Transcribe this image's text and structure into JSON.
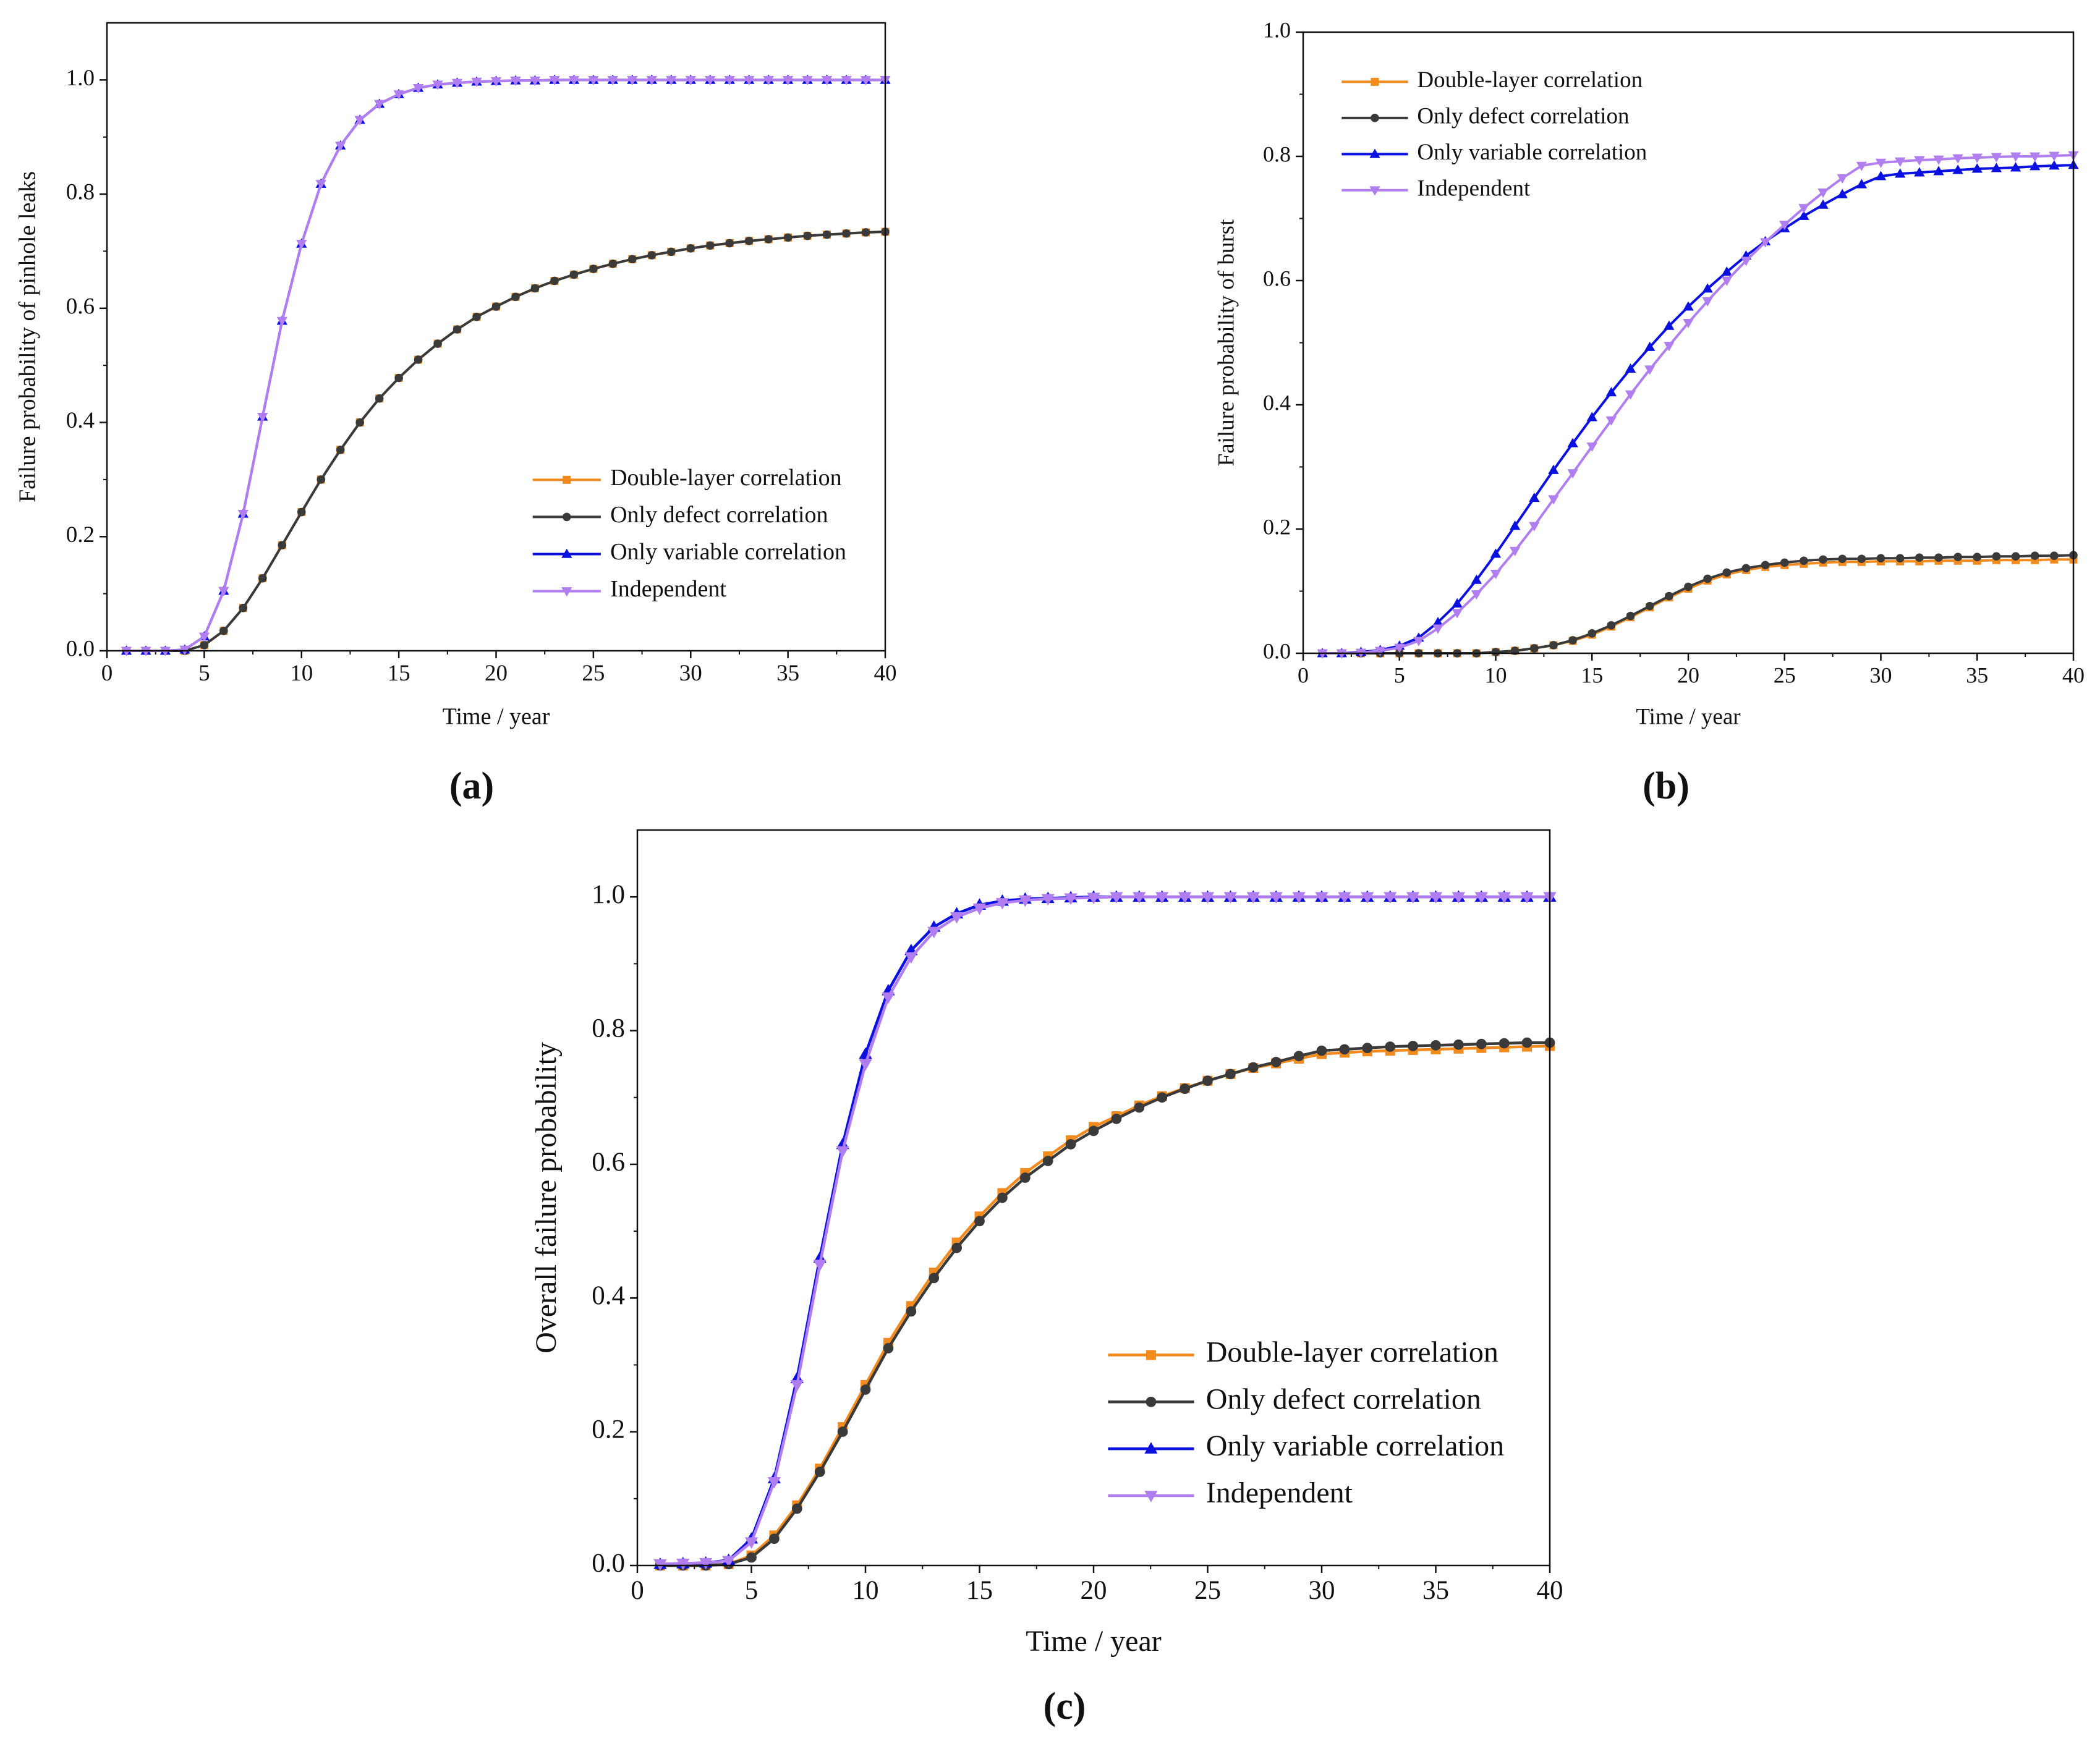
{
  "chart_data": [
    {
      "type": "line",
      "panel_label": "(a)",
      "xlabel": "Time / year",
      "ylabel": "Failure probability of pinhole leaks",
      "xlim": [
        0,
        40
      ],
      "ylim": [
        0,
        1.1
      ],
      "xticks": [
        0,
        5,
        10,
        15,
        20,
        25,
        30,
        35,
        40
      ],
      "yticks": [
        {
          "value": 0,
          "label": "0.0"
        },
        0.2,
        0.4,
        0.6,
        0.8,
        {
          "value": 1,
          "label": "1.0"
        }
      ],
      "legend": "lower right",
      "x": [
        1,
        2,
        3,
        4,
        5,
        6,
        7,
        8,
        9,
        10,
        11,
        12,
        13,
        14,
        15,
        16,
        17,
        18,
        19,
        20,
        21,
        22,
        23,
        24,
        25,
        26,
        27,
        28,
        29,
        30,
        31,
        32,
        33,
        34,
        35,
        36,
        37,
        38,
        39,
        40
      ],
      "series": [
        {
          "name": "Double-layer correlation",
          "color": "#f28a1e",
          "marker": "square",
          "values": [
            0,
            0,
            0,
            0,
            0.01,
            0.035,
            0.075,
            0.127,
            0.185,
            0.243,
            0.3,
            0.352,
            0.4,
            0.442,
            0.478,
            0.51,
            0.538,
            0.563,
            0.585,
            0.603,
            0.62,
            0.635,
            0.648,
            0.659,
            0.669,
            0.678,
            0.686,
            0.693,
            0.699,
            0.705,
            0.71,
            0.714,
            0.718,
            0.721,
            0.724,
            0.727,
            0.729,
            0.731,
            0.733,
            0.734
          ]
        },
        {
          "name": "Only defect correlation",
          "color": "#3a3a3a",
          "marker": "circle",
          "values": [
            0,
            0,
            0,
            0,
            0.01,
            0.035,
            0.075,
            0.127,
            0.185,
            0.243,
            0.3,
            0.352,
            0.4,
            0.442,
            0.478,
            0.51,
            0.538,
            0.563,
            0.585,
            0.603,
            0.62,
            0.635,
            0.648,
            0.659,
            0.669,
            0.678,
            0.686,
            0.693,
            0.699,
            0.705,
            0.71,
            0.714,
            0.718,
            0.721,
            0.724,
            0.727,
            0.729,
            0.731,
            0.733,
            0.734
          ]
        },
        {
          "name": "Only variable correlation",
          "color": "#0a10e0",
          "marker": "triangle-up",
          "values": [
            0,
            0,
            0,
            0.002,
            0.025,
            0.105,
            0.24,
            0.41,
            0.578,
            0.713,
            0.818,
            0.885,
            0.93,
            0.958,
            0.975,
            0.986,
            0.992,
            0.995,
            0.997,
            0.998,
            0.999,
            0.999,
            1,
            1,
            1,
            1,
            1,
            1,
            1,
            1,
            1,
            1,
            1,
            1,
            1,
            1,
            1,
            1,
            1,
            1
          ]
        },
        {
          "name": "Independent",
          "color": "#b07ef0",
          "marker": "triangle-down",
          "values": [
            0,
            0,
            0,
            0.002,
            0.025,
            0.105,
            0.24,
            0.41,
            0.578,
            0.713,
            0.818,
            0.885,
            0.93,
            0.958,
            0.975,
            0.986,
            0.992,
            0.995,
            0.997,
            0.998,
            0.999,
            0.999,
            1,
            1,
            1,
            1,
            1,
            1,
            1,
            1,
            1,
            1,
            1,
            1,
            1,
            1,
            1,
            1,
            1,
            1
          ]
        }
      ]
    },
    {
      "type": "line",
      "panel_label": "(b)",
      "xlabel": "Time / year",
      "ylabel": "Failure probability of burst",
      "xlim": [
        0,
        40
      ],
      "ylim": [
        0,
        1
      ],
      "xticks": [
        0,
        5,
        10,
        15,
        20,
        25,
        30,
        35,
        40
      ],
      "yticks": [
        {
          "value": 0,
          "label": "0.0"
        },
        0.2,
        0.4,
        0.6,
        0.8,
        {
          "value": 1,
          "label": "1.0"
        }
      ],
      "legend": "upper left",
      "x": [
        1,
        2,
        3,
        4,
        5,
        6,
        7,
        8,
        9,
        10,
        11,
        12,
        13,
        14,
        15,
        16,
        17,
        18,
        19,
        20,
        21,
        22,
        23,
        24,
        25,
        26,
        27,
        28,
        29,
        30,
        31,
        32,
        33,
        34,
        35,
        36,
        37,
        38,
        39,
        40
      ],
      "series": [
        {
          "name": "Double-layer correlation",
          "color": "#f28a1e",
          "marker": "square",
          "values": [
            0,
            0,
            0,
            0,
            0,
            0,
            0,
            0,
            0,
            0.002,
            0.004,
            0.008,
            0.013,
            0.02,
            0.03,
            0.043,
            0.058,
            0.074,
            0.09,
            0.104,
            0.117,
            0.127,
            0.134,
            0.139,
            0.142,
            0.144,
            0.146,
            0.147,
            0.147,
            0.148,
            0.148,
            0.148,
            0.149,
            0.149,
            0.149,
            0.15,
            0.15,
            0.15,
            0.151,
            0.151
          ]
        },
        {
          "name": "Only defect correlation",
          "color": "#3a3a3a",
          "marker": "circle",
          "values": [
            0,
            0,
            0,
            0,
            0,
            0,
            0,
            0,
            0,
            0.002,
            0.004,
            0.008,
            0.013,
            0.021,
            0.032,
            0.045,
            0.06,
            0.076,
            0.092,
            0.107,
            0.12,
            0.13,
            0.137,
            0.142,
            0.146,
            0.149,
            0.151,
            0.152,
            0.152,
            0.153,
            0.153,
            0.154,
            0.154,
            0.155,
            0.155,
            0.156,
            0.156,
            0.157,
            0.157,
            0.158
          ]
        },
        {
          "name": "Only variable correlation",
          "color": "#0a10e0",
          "marker": "triangle-up",
          "values": [
            0,
            0,
            0.002,
            0.005,
            0.012,
            0.025,
            0.05,
            0.08,
            0.118,
            0.16,
            0.205,
            0.25,
            0.295,
            0.338,
            0.38,
            0.42,
            0.458,
            0.493,
            0.527,
            0.558,
            0.587,
            0.614,
            0.64,
            0.663,
            0.684,
            0.704,
            0.722,
            0.739,
            0.755,
            0.768,
            0.772,
            0.774,
            0.776,
            0.778,
            0.78,
            0.781,
            0.782,
            0.784,
            0.785,
            0.786
          ]
        },
        {
          "name": "Independent",
          "color": "#b07ef0",
          "marker": "triangle-down",
          "values": [
            0,
            0,
            0.001,
            0.004,
            0.009,
            0.02,
            0.04,
            0.065,
            0.095,
            0.128,
            0.165,
            0.205,
            0.248,
            0.29,
            0.333,
            0.375,
            0.417,
            0.457,
            0.495,
            0.532,
            0.567,
            0.6,
            0.632,
            0.662,
            0.69,
            0.717,
            0.742,
            0.765,
            0.785,
            0.79,
            0.792,
            0.794,
            0.795,
            0.797,
            0.798,
            0.799,
            0.8,
            0.8,
            0.801,
            0.802
          ]
        }
      ]
    },
    {
      "type": "line",
      "panel_label": "(c)",
      "xlabel": "Time / year",
      "ylabel": "Overall failure probability",
      "xlim": [
        0,
        40
      ],
      "ylim": [
        0,
        1.1
      ],
      "xticks": [
        0,
        5,
        10,
        15,
        20,
        25,
        30,
        35,
        40
      ],
      "yticks": [
        {
          "value": 0,
          "label": "0.0"
        },
        0.2,
        0.4,
        0.6,
        0.8,
        {
          "value": 1,
          "label": "1.0"
        }
      ],
      "legend": "lower right",
      "x": [
        1,
        2,
        3,
        4,
        5,
        6,
        7,
        8,
        9,
        10,
        11,
        12,
        13,
        14,
        15,
        16,
        17,
        18,
        19,
        20,
        21,
        22,
        23,
        24,
        25,
        26,
        27,
        28,
        29,
        30,
        31,
        32,
        33,
        34,
        35,
        36,
        37,
        38,
        39,
        40
      ],
      "series": [
        {
          "name": "Double-layer correlation",
          "color": "#f28a1e",
          "marker": "square",
          "values": [
            0,
            0,
            0,
            0.002,
            0.015,
            0.045,
            0.09,
            0.145,
            0.207,
            0.27,
            0.333,
            0.388,
            0.438,
            0.483,
            0.522,
            0.557,
            0.587,
            0.612,
            0.636,
            0.656,
            0.672,
            0.688,
            0.702,
            0.714,
            0.725,
            0.735,
            0.744,
            0.751,
            0.758,
            0.765,
            0.767,
            0.769,
            0.77,
            0.771,
            0.772,
            0.773,
            0.774,
            0.775,
            0.776,
            0.777
          ]
        },
        {
          "name": "Only defect correlation",
          "color": "#3a3a3a",
          "marker": "circle",
          "values": [
            0,
            0,
            0,
            0.002,
            0.012,
            0.04,
            0.085,
            0.14,
            0.2,
            0.263,
            0.325,
            0.38,
            0.43,
            0.475,
            0.515,
            0.55,
            0.58,
            0.605,
            0.63,
            0.65,
            0.668,
            0.685,
            0.7,
            0.713,
            0.725,
            0.735,
            0.745,
            0.753,
            0.762,
            0.77,
            0.772,
            0.774,
            0.776,
            0.777,
            0.778,
            0.779,
            0.78,
            0.781,
            0.782,
            0.782
          ]
        },
        {
          "name": "Only variable correlation",
          "color": "#0a10e0",
          "marker": "triangle-up",
          "values": [
            0.002,
            0.003,
            0.004,
            0.008,
            0.04,
            0.13,
            0.28,
            0.46,
            0.63,
            0.765,
            0.86,
            0.92,
            0.955,
            0.975,
            0.988,
            0.994,
            0.997,
            0.998,
            0.999,
            1,
            1,
            1,
            1,
            1,
            1,
            1,
            1,
            1,
            1,
            1,
            1,
            1,
            1,
            1,
            1,
            1,
            1,
            1,
            1,
            1
          ]
        },
        {
          "name": "Independent",
          "color": "#b07ef0",
          "marker": "triangle-down",
          "values": [
            0.002,
            0.003,
            0.004,
            0.007,
            0.035,
            0.125,
            0.27,
            0.45,
            0.62,
            0.75,
            0.85,
            0.91,
            0.948,
            0.97,
            0.983,
            0.991,
            0.995,
            0.997,
            0.998,
            0.999,
            1,
            1,
            1,
            1,
            1,
            1,
            1,
            1,
            1,
            1,
            1,
            1,
            1,
            1,
            1,
            1,
            1,
            1,
            1,
            1
          ]
        }
      ]
    }
  ]
}
